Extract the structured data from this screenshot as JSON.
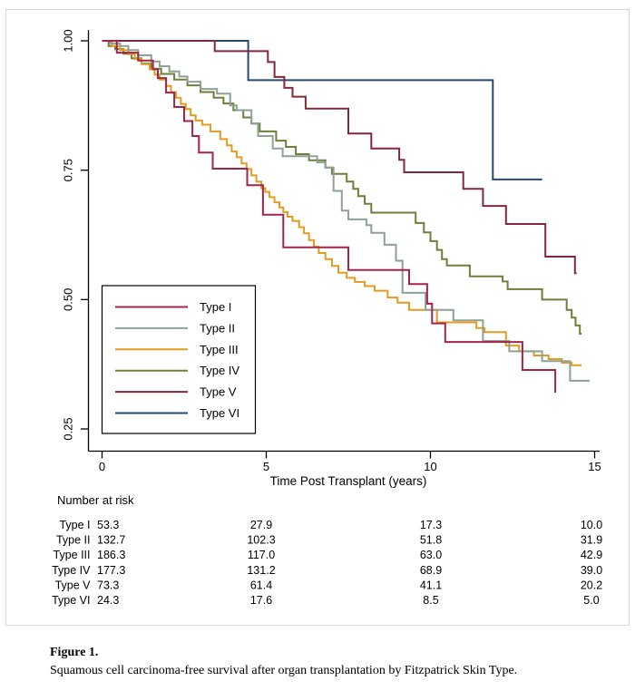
{
  "figure": {
    "caption_label": "Figure 1.",
    "caption_text": "Squamous cell carcinoma-free survival after organ transplantation by Fitzpatrick Skin Type."
  },
  "chart_data": {
    "type": "line",
    "subtype": "kaplan-meier-step",
    "title": "",
    "xlabel": "Time Post Transplant (years)",
    "ylabel": "",
    "xlim": [
      0,
      15
    ],
    "ylim": [
      0.22,
      1.0
    ],
    "grid": false,
    "legend_position": "lower-left-box",
    "x_ticks": [
      {
        "v": 0,
        "label": "0"
      },
      {
        "v": 5,
        "label": "5"
      },
      {
        "v": 10,
        "label": "10"
      },
      {
        "v": 15,
        "label": "15"
      }
    ],
    "y_ticks": [
      {
        "v": 0.25,
        "label": "0.25"
      },
      {
        "v": 0.5,
        "label": "0.50"
      },
      {
        "v": 0.75,
        "label": "0.75"
      },
      {
        "v": 1.0,
        "label": "1.00"
      }
    ],
    "series": [
      {
        "name": "Type I",
        "color": "#a52348",
        "end_t": 13.8,
        "points": [
          [
            0,
            1.0
          ],
          [
            0.45,
            0.977
          ],
          [
            1.1,
            0.962
          ],
          [
            1.55,
            0.945
          ],
          [
            1.7,
            0.928
          ],
          [
            1.95,
            0.9
          ],
          [
            2.2,
            0.872
          ],
          [
            2.5,
            0.845
          ],
          [
            2.75,
            0.816
          ],
          [
            2.95,
            0.784
          ],
          [
            3.37,
            0.753
          ],
          [
            4.42,
            0.721
          ],
          [
            4.9,
            0.664
          ],
          [
            5.52,
            0.601
          ],
          [
            7.5,
            0.557
          ],
          [
            9.35,
            0.53
          ],
          [
            9.9,
            0.492
          ],
          [
            10.05,
            0.454
          ],
          [
            10.45,
            0.418
          ],
          [
            12.8,
            0.364
          ],
          [
            13.8,
            0.32
          ]
        ]
      },
      {
        "name": "Type II",
        "color": "#8da195",
        "end_t": 14.85,
        "points": [
          [
            0,
            1.0
          ],
          [
            0.25,
            0.995
          ],
          [
            0.55,
            0.99
          ],
          [
            0.8,
            0.982
          ],
          [
            1.1,
            0.972
          ],
          [
            1.5,
            0.96
          ],
          [
            1.75,
            0.951
          ],
          [
            2.05,
            0.941
          ],
          [
            2.35,
            0.931
          ],
          [
            2.6,
            0.921
          ],
          [
            3.0,
            0.907
          ],
          [
            3.5,
            0.898
          ],
          [
            3.9,
            0.875
          ],
          [
            4.1,
            0.866
          ],
          [
            4.55,
            0.84
          ],
          [
            4.75,
            0.816
          ],
          [
            5.2,
            0.792
          ],
          [
            5.5,
            0.777
          ],
          [
            6.55,
            0.765
          ],
          [
            6.8,
            0.755
          ],
          [
            7.05,
            0.71
          ],
          [
            7.3,
            0.672
          ],
          [
            7.5,
            0.655
          ],
          [
            8.05,
            0.644
          ],
          [
            8.2,
            0.629
          ],
          [
            8.6,
            0.606
          ],
          [
            8.95,
            0.575
          ],
          [
            9.15,
            0.513
          ],
          [
            9.85,
            0.48
          ],
          [
            10.7,
            0.46
          ],
          [
            11.6,
            0.42
          ],
          [
            12.4,
            0.4
          ],
          [
            13.4,
            0.381
          ],
          [
            14.25,
            0.343
          ]
        ]
      },
      {
        "name": "Type III",
        "color": "#e29b20",
        "end_t": 14.6,
        "points": [
          [
            0,
            1.0
          ],
          [
            0.3,
            0.99
          ],
          [
            0.55,
            0.982
          ],
          [
            0.8,
            0.974
          ],
          [
            1.0,
            0.965
          ],
          [
            1.2,
            0.955
          ],
          [
            1.45,
            0.945
          ],
          [
            1.6,
            0.935
          ],
          [
            1.75,
            0.925
          ],
          [
            1.95,
            0.913
          ],
          [
            2.1,
            0.901
          ],
          [
            2.25,
            0.89
          ],
          [
            2.4,
            0.878
          ],
          [
            2.55,
            0.868
          ],
          [
            2.7,
            0.856
          ],
          [
            2.85,
            0.846
          ],
          [
            3.05,
            0.838
          ],
          [
            3.3,
            0.825
          ],
          [
            3.6,
            0.81
          ],
          [
            3.8,
            0.798
          ],
          [
            3.95,
            0.786
          ],
          [
            4.1,
            0.775
          ],
          [
            4.25,
            0.763
          ],
          [
            4.4,
            0.752
          ],
          [
            4.55,
            0.74
          ],
          [
            4.7,
            0.728
          ],
          [
            4.85,
            0.715
          ],
          [
            4.97,
            0.708
          ],
          [
            5.1,
            0.698
          ],
          [
            5.25,
            0.688
          ],
          [
            5.4,
            0.678
          ],
          [
            5.52,
            0.669
          ],
          [
            5.65,
            0.66
          ],
          [
            5.8,
            0.652
          ],
          [
            6.0,
            0.64
          ],
          [
            6.15,
            0.628
          ],
          [
            6.3,
            0.615
          ],
          [
            6.45,
            0.602
          ],
          [
            6.6,
            0.59
          ],
          [
            6.8,
            0.578
          ],
          [
            7.0,
            0.565
          ],
          [
            7.2,
            0.552
          ],
          [
            7.45,
            0.542
          ],
          [
            7.7,
            0.534
          ],
          [
            8.0,
            0.526
          ],
          [
            8.3,
            0.517
          ],
          [
            8.7,
            0.504
          ],
          [
            9.0,
            0.494
          ],
          [
            9.35,
            0.48
          ],
          [
            10.2,
            0.456
          ],
          [
            11.4,
            0.445
          ],
          [
            11.65,
            0.437
          ],
          [
            12.3,
            0.411
          ],
          [
            12.7,
            0.4
          ],
          [
            13.15,
            0.392
          ],
          [
            13.6,
            0.385
          ],
          [
            14.0,
            0.378
          ],
          [
            14.3,
            0.373
          ]
        ]
      },
      {
        "name": "Type IV",
        "color": "#6e7e3b",
        "end_t": 14.6,
        "points": [
          [
            0,
            1.0
          ],
          [
            0.2,
            0.99
          ],
          [
            0.4,
            0.984
          ],
          [
            0.65,
            0.975
          ],
          [
            0.9,
            0.966
          ],
          [
            1.2,
            0.956
          ],
          [
            1.5,
            0.946
          ],
          [
            1.8,
            0.936
          ],
          [
            2.2,
            0.925
          ],
          [
            2.6,
            0.914
          ],
          [
            3.0,
            0.901
          ],
          [
            3.4,
            0.89
          ],
          [
            3.7,
            0.879
          ],
          [
            4.0,
            0.866
          ],
          [
            4.3,
            0.852
          ],
          [
            4.55,
            0.84
          ],
          [
            4.8,
            0.825
          ],
          [
            5.3,
            0.807
          ],
          [
            5.6,
            0.795
          ],
          [
            5.9,
            0.781
          ],
          [
            6.3,
            0.769
          ],
          [
            6.8,
            0.755
          ],
          [
            7.0,
            0.743
          ],
          [
            7.45,
            0.728
          ],
          [
            7.65,
            0.714
          ],
          [
            7.8,
            0.7
          ],
          [
            8.0,
            0.685
          ],
          [
            8.2,
            0.668
          ],
          [
            9.55,
            0.648
          ],
          [
            9.8,
            0.63
          ],
          [
            10.0,
            0.613
          ],
          [
            10.2,
            0.596
          ],
          [
            10.35,
            0.578
          ],
          [
            10.5,
            0.566
          ],
          [
            11.2,
            0.545
          ],
          [
            12.2,
            0.535
          ],
          [
            12.35,
            0.52
          ],
          [
            13.4,
            0.5
          ],
          [
            14.15,
            0.48
          ],
          [
            14.3,
            0.465
          ],
          [
            14.42,
            0.45
          ],
          [
            14.55,
            0.434
          ]
        ]
      },
      {
        "name": "Type V",
        "color": "#84273a",
        "end_t": 14.45,
        "points": [
          [
            0,
            1.0
          ],
          [
            3.43,
            0.98
          ],
          [
            5.05,
            0.959
          ],
          [
            5.25,
            0.93
          ],
          [
            5.55,
            0.909
          ],
          [
            5.8,
            0.892
          ],
          [
            6.2,
            0.869
          ],
          [
            7.5,
            0.821
          ],
          [
            8.2,
            0.792
          ],
          [
            9.05,
            0.77
          ],
          [
            9.2,
            0.746
          ],
          [
            11.0,
            0.714
          ],
          [
            11.6,
            0.681
          ],
          [
            12.3,
            0.646
          ],
          [
            13.5,
            0.583
          ],
          [
            14.4,
            0.551
          ]
        ]
      },
      {
        "name": "Type VI",
        "color": "#27496b",
        "end_t": 13.4,
        "points": [
          [
            0,
            1.0
          ],
          [
            4.45,
            0.924
          ],
          [
            11.9,
            0.732
          ]
        ]
      }
    ]
  },
  "risk_table": {
    "title": "Number at risk",
    "time_points": [
      0,
      5,
      10,
      15
    ],
    "rows": [
      {
        "label": "Type I",
        "values": [
          "53.3",
          "27.9",
          "17.3",
          "10.0"
        ]
      },
      {
        "label": "Type II",
        "values": [
          "132.7",
          "102.3",
          "51.8",
          "31.9"
        ]
      },
      {
        "label": "Type III",
        "values": [
          "186.3",
          "117.0",
          "63.0",
          "42.9"
        ]
      },
      {
        "label": "Type IV",
        "values": [
          "177.3",
          "131.2",
          "68.9",
          "39.0"
        ]
      },
      {
        "label": "Type V",
        "values": [
          "73.3",
          "61.4",
          "41.1",
          "20.2"
        ]
      },
      {
        "label": "Type VI",
        "values": [
          "24.3",
          "17.6",
          "8.5",
          "5.0"
        ]
      }
    ]
  }
}
